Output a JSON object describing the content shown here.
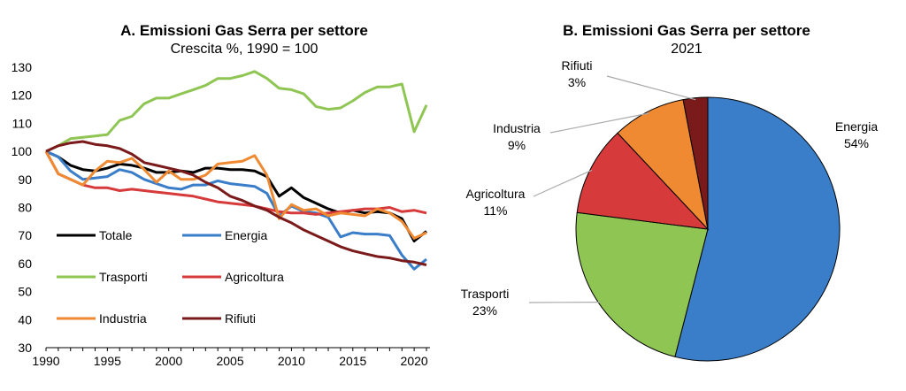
{
  "chart_data": [
    {
      "type": "line",
      "title": "A. Emissioni Gas Serra per settore",
      "subtitle": "Crescita %, 1990 = 100",
      "xlabel": "",
      "ylabel": "",
      "x": [
        1990,
        1991,
        1992,
        1993,
        1994,
        1995,
        1996,
        1997,
        1998,
        1999,
        2000,
        2001,
        2002,
        2003,
        2004,
        2005,
        2006,
        2007,
        2008,
        2009,
        2010,
        2011,
        2012,
        2013,
        2014,
        2015,
        2016,
        2017,
        2018,
        2019,
        2020,
        2021
      ],
      "xlim": [
        1990,
        2021
      ],
      "ylim": [
        30,
        130
      ],
      "xticks": [
        1990,
        1995,
        2000,
        2005,
        2010,
        2015,
        2020
      ],
      "yticks": [
        30,
        40,
        50,
        60,
        70,
        80,
        90,
        100,
        110,
        120,
        130
      ],
      "grid": false,
      "series": [
        {
          "name": "Totale",
          "color": "#000000",
          "values": [
            100,
            98,
            95,
            93.5,
            93,
            94,
            95.5,
            95,
            94,
            92.5,
            92.5,
            93,
            92.5,
            94,
            94,
            93.5,
            93.5,
            93,
            91,
            84,
            87,
            83.5,
            81.5,
            79.5,
            78,
            79,
            78,
            78.5,
            78,
            76,
            68,
            71.5
          ]
        },
        {
          "name": "Energia",
          "color": "#3a7dc9",
          "values": [
            100,
            98,
            93,
            90,
            90.5,
            91,
            93.5,
            92.5,
            90,
            88.5,
            87,
            86.5,
            88,
            88,
            89.5,
            88.5,
            88,
            87.5,
            85,
            77,
            80.5,
            78.5,
            78,
            76.5,
            69.5,
            71,
            70.5,
            70.5,
            70,
            63,
            58,
            61.5
          ]
        },
        {
          "name": "Trasporti",
          "color": "#8fc553",
          "values": [
            100,
            102,
            104.5,
            105,
            105.5,
            106,
            111,
            112.5,
            117,
            119,
            119,
            120.5,
            122,
            123.5,
            126,
            126,
            127,
            128.5,
            126,
            122.5,
            122,
            120.5,
            116,
            115,
            115.5,
            118,
            121,
            123,
            123,
            124,
            107,
            116.5
          ]
        },
        {
          "name": "Agricoltura",
          "color": "#d73a3a",
          "values": [
            100,
            92,
            90,
            88,
            87,
            87,
            86,
            86.5,
            86,
            85.5,
            85,
            84.5,
            84,
            83,
            82,
            81.5,
            81,
            80.5,
            79.5,
            78.5,
            78,
            78,
            77.5,
            78,
            78.5,
            79,
            79.5,
            79.5,
            80,
            78.5,
            79,
            78
          ]
        },
        {
          "name": "Industria",
          "color": "#ef8a33",
          "values": [
            100,
            92,
            90,
            88,
            93,
            96.5,
            96,
            97.5,
            93.5,
            89,
            93,
            90,
            90,
            91.5,
            95.5,
            96,
            96.5,
            98.5,
            91.5,
            76,
            81,
            79,
            79.5,
            77,
            78,
            77.5,
            77,
            79.5,
            78,
            75,
            69,
            71
          ]
        },
        {
          "name": "Rifiuti",
          "color": "#7b1a1a",
          "values": [
            100,
            102,
            103,
            103.5,
            102.5,
            102,
            101,
            99,
            96,
            95,
            94,
            93,
            91.5,
            89,
            87,
            84,
            82.5,
            80.5,
            79,
            76.5,
            74.5,
            72,
            70,
            68,
            66,
            64.5,
            63.5,
            62.5,
            62,
            61,
            60.5,
            59.5
          ]
        }
      ]
    },
    {
      "type": "pie",
      "title": "B. Emissioni Gas Serra per settore",
      "subtitle": "2021",
      "slices": [
        {
          "name": "Energia",
          "value": 54,
          "label": "54%",
          "color": "#3a7dc9"
        },
        {
          "name": "Trasporti",
          "value": 23,
          "label": "23%",
          "color": "#8fc553"
        },
        {
          "name": "Agricoltura",
          "value": 11,
          "label": "11%",
          "color": "#d73a3a"
        },
        {
          "name": "Industria",
          "value": 9,
          "label": "9%",
          "color": "#ef8a33"
        },
        {
          "name": "Rifiuti",
          "value": 3,
          "label": "3%",
          "color": "#7b1a1a"
        }
      ]
    }
  ]
}
